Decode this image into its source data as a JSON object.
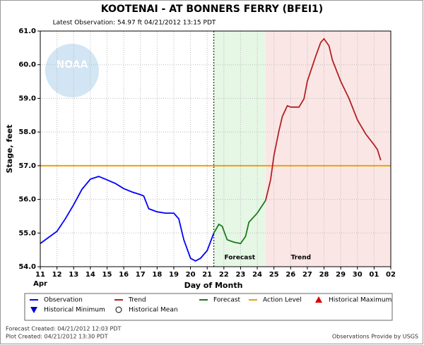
{
  "chart_data": {
    "type": "line",
    "title": "KOOTENAI - AT BONNERS FERRY  (BFEI1)",
    "subtitle": "Latest Observation: 54.97 ft 04/21/2012 13:15 PDT",
    "logo_text": "NOAA",
    "x_label": "Day of Month",
    "x_sublabel": "Apr",
    "y_label": "Stage, feet",
    "xlim": [
      11,
      32
    ],
    "xticks": [
      11,
      12,
      13,
      14,
      15,
      16,
      17,
      18,
      19,
      20,
      21,
      22,
      23,
      24,
      25,
      26,
      27,
      28,
      29,
      30,
      {
        "value": 31,
        "label": "01"
      },
      {
        "value": 32,
        "label": "02"
      }
    ],
    "ylim": [
      54,
      61
    ],
    "yticks": [
      {
        "value": 54,
        "label": "54.0"
      },
      {
        "value": 55,
        "label": "55.0"
      },
      {
        "value": 56,
        "label": "56.0"
      },
      {
        "value": 57,
        "label": "57.0"
      },
      {
        "value": 58,
        "label": "58.0"
      },
      {
        "value": 59,
        "label": "59.0"
      },
      {
        "value": 60,
        "label": "60.0"
      },
      {
        "value": 61,
        "label": "61.0"
      }
    ],
    "grid": true,
    "series": [
      {
        "name": "Observation",
        "color": "#0000ff",
        "x": [
          11,
          12,
          12.5,
          13,
          13.5,
          14,
          14.5,
          15,
          15.5,
          16,
          16.5,
          17,
          17.2,
          17.5,
          18,
          18.5,
          19,
          19.3,
          19.6,
          20,
          20.3,
          20.6,
          21,
          21.4
        ],
        "values": [
          54.69,
          55.05,
          55.42,
          55.84,
          56.3,
          56.6,
          56.68,
          56.58,
          56.47,
          56.32,
          56.22,
          56.14,
          56.1,
          55.72,
          55.63,
          55.59,
          55.59,
          55.42,
          54.8,
          54.25,
          54.17,
          54.25,
          54.48,
          55.0
        ]
      },
      {
        "name": "Trend",
        "color": "#b22222",
        "x": [
          24.5,
          24.8,
          25,
          25.3,
          25.5,
          25.8,
          26,
          26.5,
          26.8,
          27,
          27.5,
          27.8,
          28,
          28.3,
          28.5,
          29,
          29.5,
          30,
          30.5,
          31,
          31.2,
          31.4
        ],
        "values": [
          55.97,
          56.58,
          57.31,
          58.04,
          58.46,
          58.78,
          58.74,
          58.74,
          58.99,
          59.51,
          60.25,
          60.66,
          60.77,
          60.56,
          60.14,
          59.51,
          58.99,
          58.36,
          57.94,
          57.62,
          57.48,
          57.16
        ]
      },
      {
        "name": "Forecast",
        "color": "#1a7a1a",
        "x": [
          21.4,
          21.7,
          21.9,
          22.2,
          22.6,
          23,
          23.3,
          23.5,
          24,
          24.5
        ],
        "values": [
          55.0,
          55.26,
          55.2,
          54.8,
          54.73,
          54.69,
          54.9,
          55.32,
          55.59,
          55.97
        ]
      }
    ],
    "action_level": {
      "name": "Action Level",
      "value": 57.0,
      "color": "#f0a000"
    },
    "historical_markers": [
      {
        "name": "Historical Maximum",
        "color": "#dd0000",
        "marker": "triangle-up"
      },
      {
        "name": "Historical Minimum",
        "color": "#0000cc",
        "marker": "triangle-down"
      },
      {
        "name": "Historical Mean",
        "color": "#000000",
        "marker": "circle"
      }
    ],
    "region_labels": {
      "forecast": "Forecast",
      "trend": "Trend"
    },
    "footer": {
      "forecast_created": "Forecast Created: 04/21/2012 12:03 PDT",
      "plot_created": "Plot Created: 04/21/2012 13:30 PDT",
      "source": "Observations Provide by USGS"
    }
  }
}
